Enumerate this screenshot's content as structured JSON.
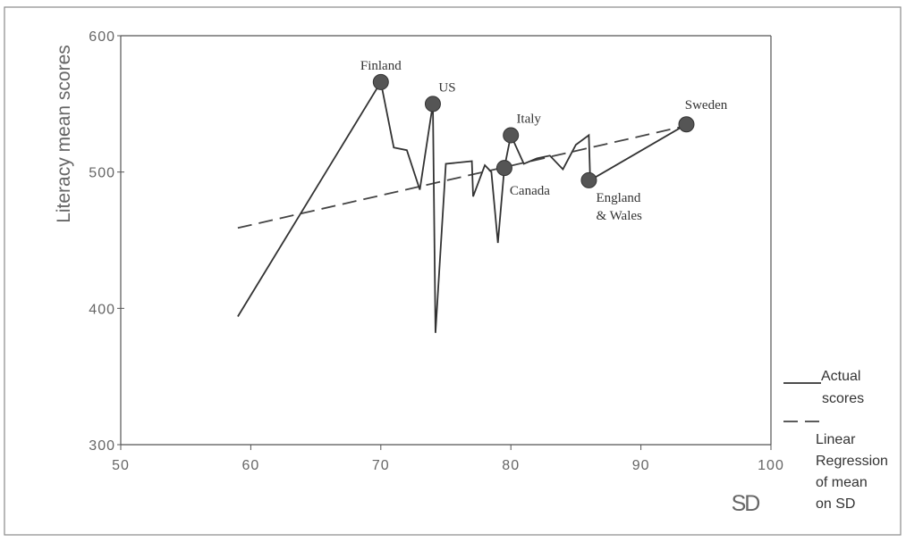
{
  "chart_data": {
    "type": "line",
    "title": "",
    "xlabel": "SD",
    "ylabel": "Literacy mean scores",
    "xlim": [
      50,
      100
    ],
    "ylim": [
      300,
      600
    ],
    "x_ticks": [
      "50",
      "60",
      "70",
      "80",
      "90",
      "100"
    ],
    "y_ticks": [
      "300",
      "400",
      "500",
      "600"
    ],
    "grid": false,
    "legend_position": "right",
    "series": [
      {
        "name": "Actual scores",
        "style": "solid",
        "color": "#333333",
        "x": [
          59,
          70,
          71,
          72,
          73,
          74,
          74.2,
          75,
          77,
          77.1,
          78,
          78.5,
          79,
          79.5,
          80,
          81,
          82,
          83,
          84,
          85,
          86,
          86.1,
          93.5
        ],
        "y": [
          394,
          566,
          518,
          516,
          487,
          550,
          382,
          506,
          508,
          482,
          505,
          500,
          448,
          503,
          527,
          506,
          510,
          512,
          502,
          520,
          527,
          494,
          535
        ]
      },
      {
        "name": "Linear Regression of mean on SD",
        "style": "dashed",
        "color": "#444444",
        "x": [
          59,
          93.5
        ],
        "y": [
          459,
          534
        ]
      }
    ],
    "labeled_points": [
      {
        "label": "Finland",
        "x": 70,
        "y": 566
      },
      {
        "label": "US",
        "x": 74,
        "y": 550
      },
      {
        "label": "Italy",
        "x": 80,
        "y": 527
      },
      {
        "label": "Canada",
        "x": 79.5,
        "y": 503
      },
      {
        "label": "England & Wales",
        "label_lines": [
          "England",
          "& Wales"
        ],
        "x": 86,
        "y": 494
      },
      {
        "label": "Sweden",
        "x": 93.5,
        "y": 535
      }
    ]
  },
  "legend": {
    "actual": [
      "Actual",
      "scores"
    ],
    "regression": [
      "Linear",
      "Regression",
      "of mean",
      "on SD"
    ]
  }
}
